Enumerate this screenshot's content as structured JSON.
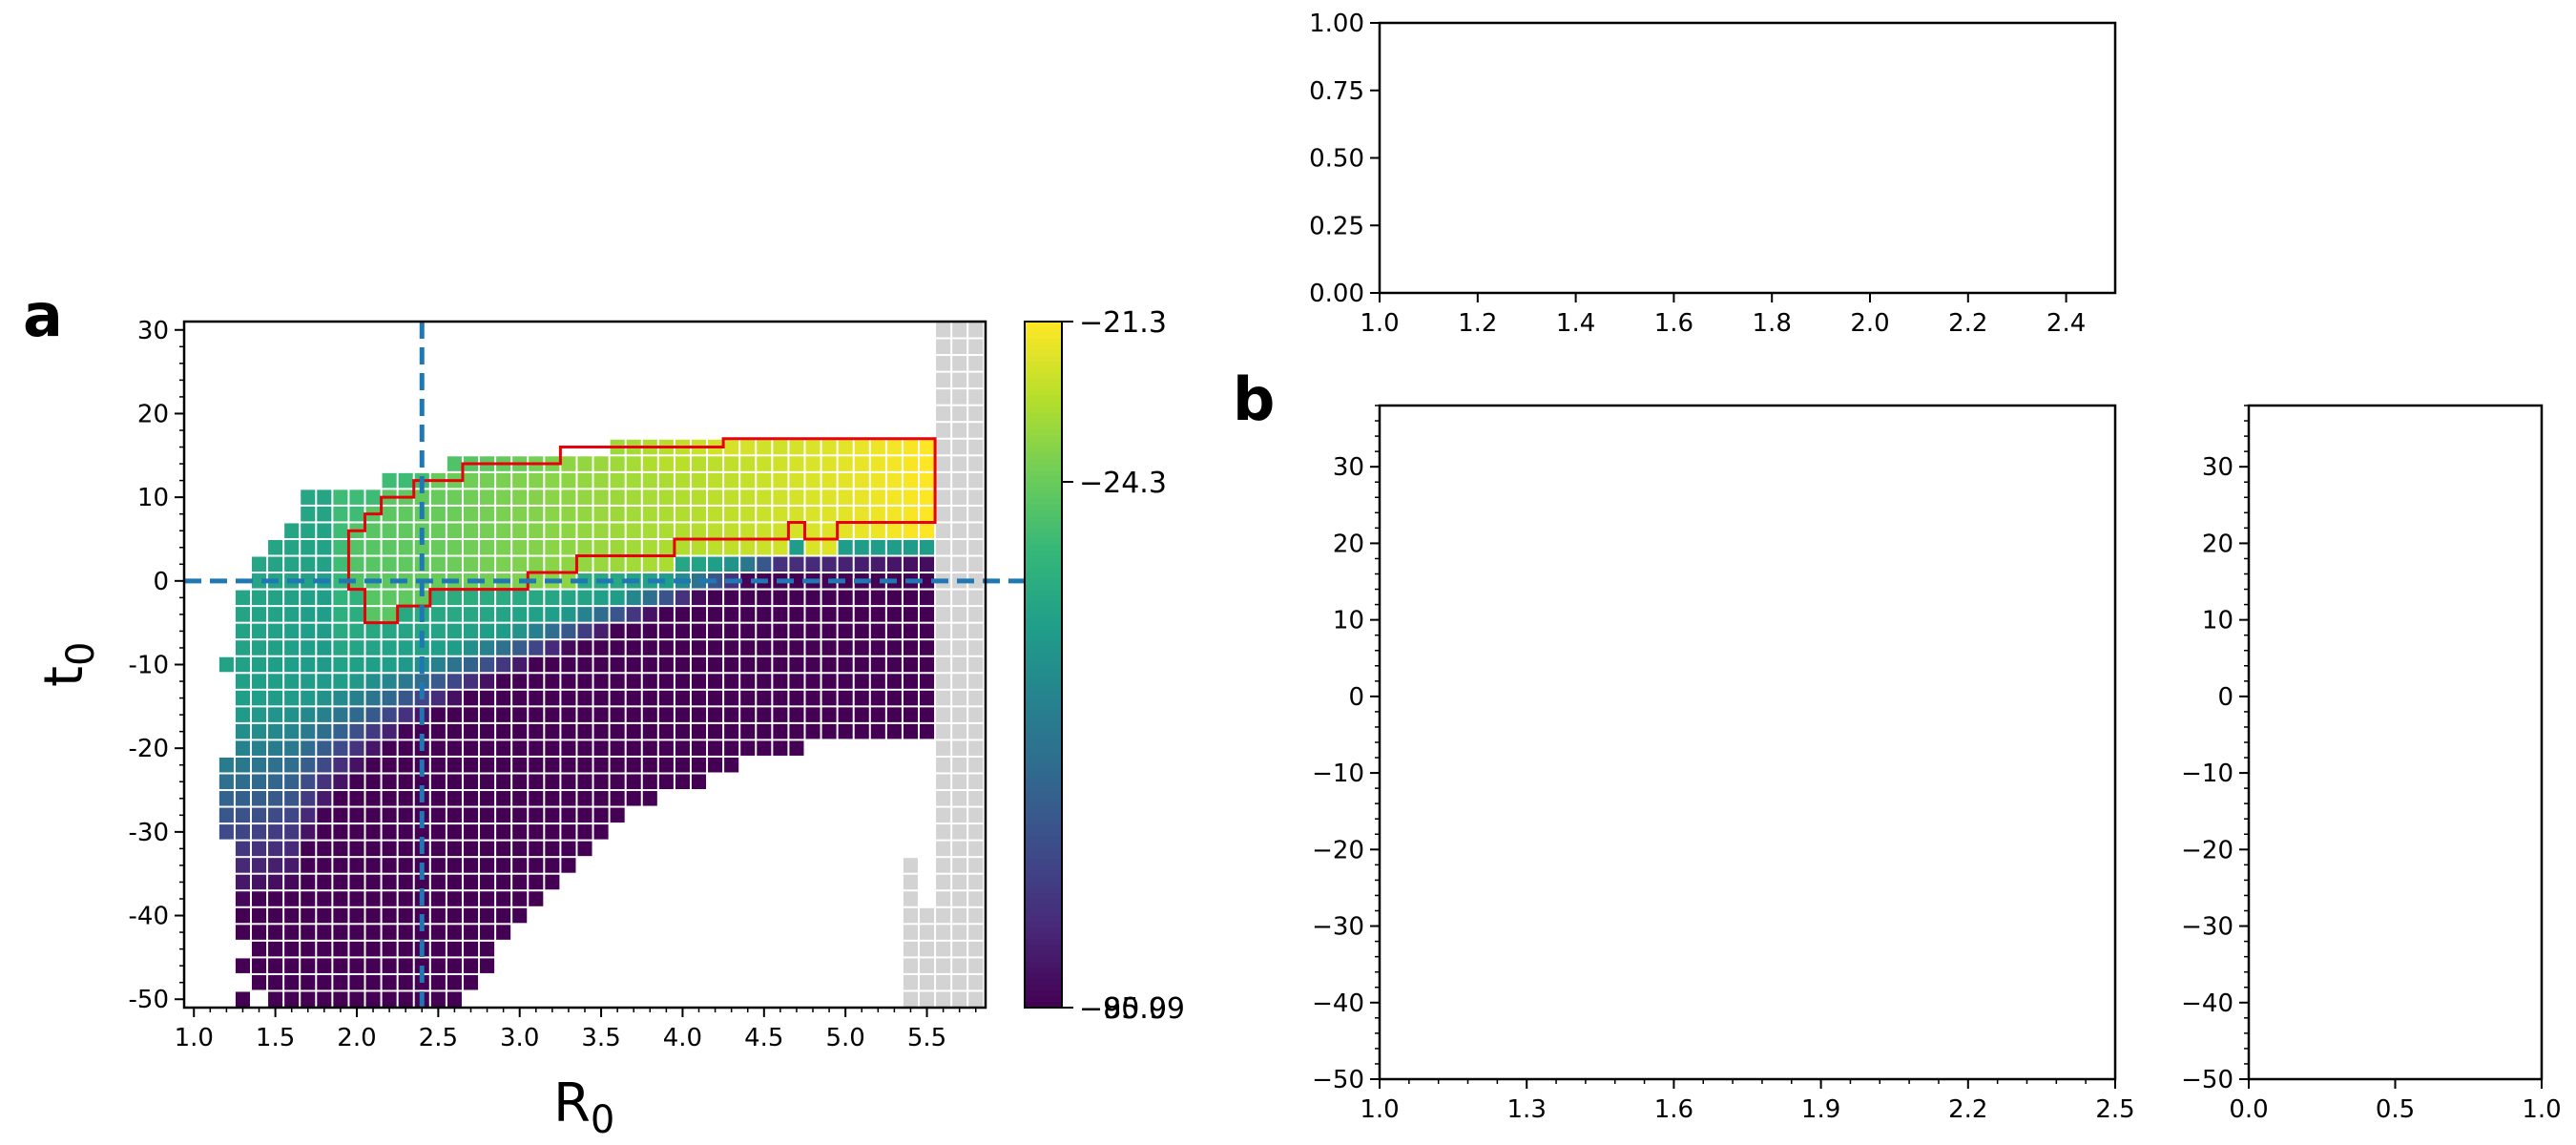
{
  "chart_data": [
    {
      "panel": "a",
      "type": "heatmap",
      "xlabel_main": "R",
      "xlabel_sub": "0",
      "ylabel_main": "t",
      "ylabel_sub": "0",
      "x_ticks": [
        "1.0",
        "1.5",
        "2.0",
        "2.5",
        "3.0",
        "3.5",
        "4.0",
        "4.5",
        "5.0",
        "5.5"
      ],
      "y_ticks": [
        "30",
        "20",
        "10",
        "0",
        "-10",
        "-20",
        "-30",
        "-40",
        "-50"
      ],
      "xlim": [
        0.94,
        5.86
      ],
      "ylim": [
        -51,
        31
      ],
      "grid_step": {
        "r0": 0.1,
        "t0": 2
      },
      "colormap": "viridis",
      "colorbar_ticks": [
        "−21.3",
        "−24.3",
        "−80.09",
        "−95.9"
      ],
      "colorbar_range": [
        -95.9,
        -21.3
      ],
      "reference_lines": {
        "R0": 2.4,
        "t0": 0,
        "color": "#1f77b4",
        "style": "dashed"
      },
      "highlight_region_color": "#e8000b",
      "unavailable_color": "#d3d3d3",
      "region": {
        "description": "cells present per R0 column (t0 ranges)",
        "columns": [
          {
            "r0": 1.2,
            "t0_ranges": [
              [
                -10,
                -10
              ],
              [
                -30,
                -22
              ]
            ]
          },
          {
            "r0": 1.3,
            "t0_ranges": [
              [
                -50,
                -50
              ],
              [
                -46,
                -46
              ],
              [
                -42,
                -2
              ]
            ]
          },
          {
            "r0": 1.4,
            "t0_ranges": [
              [
                -48,
                -46
              ],
              [
                -44,
                2
              ]
            ]
          },
          {
            "r0": 1.5,
            "t0_ranges": [
              [
                -50,
                -44
              ],
              [
                -42,
                4
              ]
            ]
          },
          {
            "r0": 1.6,
            "t0_ranges": [
              [
                -50,
                6
              ]
            ]
          },
          {
            "r0": 1.7,
            "t0_ranges": [
              [
                -50,
                10
              ]
            ]
          },
          {
            "r0": 1.8,
            "t0_ranges": [
              [
                -50,
                10
              ]
            ]
          },
          {
            "r0": 1.9,
            "t0_ranges": [
              [
                -50,
                10
              ]
            ]
          },
          {
            "r0": 2.0,
            "t0_ranges": [
              [
                -50,
                10
              ]
            ]
          },
          {
            "r0": 2.1,
            "t0_ranges": [
              [
                -50,
                10
              ]
            ]
          },
          {
            "r0": 2.2,
            "t0_ranges": [
              [
                -50,
                12
              ]
            ]
          },
          {
            "r0": 2.3,
            "t0_ranges": [
              [
                -50,
                12
              ]
            ]
          },
          {
            "r0": 2.4,
            "t0_ranges": [
              [
                -50,
                12
              ]
            ]
          },
          {
            "r0": 2.5,
            "t0_ranges": [
              [
                -50,
                12
              ]
            ]
          },
          {
            "r0": 2.6,
            "t0_ranges": [
              [
                -50,
                14
              ]
            ]
          },
          {
            "r0": 2.7,
            "t0_ranges": [
              [
                -48,
                14
              ]
            ]
          },
          {
            "r0": 2.8,
            "t0_ranges": [
              [
                -46,
                14
              ]
            ]
          },
          {
            "r0": 2.9,
            "t0_ranges": [
              [
                -42,
                14
              ]
            ]
          },
          {
            "r0": 3.0,
            "t0_ranges": [
              [
                -40,
                14
              ]
            ]
          },
          {
            "r0": 3.1,
            "t0_ranges": [
              [
                -38,
                14
              ]
            ]
          },
          {
            "r0": 3.2,
            "t0_ranges": [
              [
                -36,
                14
              ]
            ]
          },
          {
            "r0": 3.3,
            "t0_ranges": [
              [
                -34,
                14
              ]
            ]
          },
          {
            "r0": 3.4,
            "t0_ranges": [
              [
                -32,
                14
              ]
            ]
          },
          {
            "r0": 3.5,
            "t0_ranges": [
              [
                -30,
                14
              ]
            ]
          },
          {
            "r0": 3.6,
            "t0_ranges": [
              [
                -28,
                16
              ]
            ]
          },
          {
            "r0": 3.7,
            "t0_ranges": [
              [
                -26,
                16
              ]
            ]
          },
          {
            "r0": 3.8,
            "t0_ranges": [
              [
                -26,
                16
              ]
            ]
          },
          {
            "r0": 3.9,
            "t0_ranges": [
              [
                -24,
                16
              ]
            ]
          },
          {
            "r0": 4.0,
            "t0_ranges": [
              [
                -24,
                16
              ]
            ]
          },
          {
            "r0": 4.1,
            "t0_ranges": [
              [
                -24,
                16
              ]
            ]
          },
          {
            "r0": 4.2,
            "t0_ranges": [
              [
                -22,
                16
              ]
            ]
          },
          {
            "r0": 4.3,
            "t0_ranges": [
              [
                -22,
                16
              ]
            ]
          },
          {
            "r0": 4.4,
            "t0_ranges": [
              [
                -20,
                16
              ]
            ]
          },
          {
            "r0": 4.5,
            "t0_ranges": [
              [
                -20,
                16
              ]
            ]
          },
          {
            "r0": 4.6,
            "t0_ranges": [
              [
                -20,
                16
              ]
            ]
          },
          {
            "r0": 4.7,
            "t0_ranges": [
              [
                -20,
                16
              ]
            ]
          },
          {
            "r0": 4.8,
            "t0_ranges": [
              [
                -18,
                16
              ]
            ]
          },
          {
            "r0": 4.9,
            "t0_ranges": [
              [
                -18,
                16
              ]
            ]
          },
          {
            "r0": 5.0,
            "t0_ranges": [
              [
                -18,
                16
              ]
            ]
          },
          {
            "r0": 5.1,
            "t0_ranges": [
              [
                -18,
                16
              ]
            ]
          },
          {
            "r0": 5.2,
            "t0_ranges": [
              [
                -18,
                16
              ]
            ]
          },
          {
            "r0": 5.3,
            "t0_ranges": [
              [
                -18,
                16
              ]
            ]
          },
          {
            "r0": 5.4,
            "t0_ranges": [
              [
                -18,
                16
              ]
            ]
          },
          {
            "r0": 5.5,
            "t0_ranges": [
              [
                -18,
                16
              ]
            ]
          }
        ],
        "gray_columns": [
          {
            "r0": 5.4,
            "t0_ranges": [
              [
                -50,
                -34
              ]
            ]
          },
          {
            "r0": 5.5,
            "t0_ranges": [
              [
                -50,
                -40
              ]
            ]
          },
          {
            "r0": 5.6,
            "t0_ranges": [
              [
                -50,
                30
              ]
            ]
          },
          {
            "r0": 5.7,
            "t0_ranges": [
              [
                -50,
                30
              ]
            ]
          },
          {
            "r0": 5.8,
            "t0_ranges": [
              [
                -50,
                30
              ]
            ]
          }
        ]
      }
    },
    {
      "panel": "b-top",
      "type": "line",
      "series": [],
      "x_ticks": [
        "1.0",
        "1.2",
        "1.4",
        "1.6",
        "1.8",
        "2.0",
        "2.2",
        "2.4"
      ],
      "y_ticks": [
        "1.00",
        "0.75",
        "0.50",
        "0.25",
        "0.00"
      ],
      "xlim": [
        1.0,
        2.5
      ],
      "ylim": [
        0.0,
        1.0
      ]
    },
    {
      "panel": "b-main",
      "type": "line",
      "series": [],
      "x_ticks": [
        "1.0",
        "1.3",
        "1.6",
        "1.9",
        "2.2",
        "2.5"
      ],
      "y_ticks": [
        "30",
        "20",
        "10",
        "0",
        "−10",
        "−20",
        "−30",
        "−40",
        "−50"
      ],
      "xlim": [
        1.0,
        2.5
      ],
      "ylim": [
        -50,
        38
      ]
    },
    {
      "panel": "b-right",
      "type": "line",
      "series": [],
      "x_ticks": [
        "0.0",
        "0.5",
        "1.0"
      ],
      "y_ticks": [
        "30",
        "20",
        "10",
        "0",
        "−10",
        "−20",
        "−30",
        "−40",
        "−50"
      ],
      "xlim": [
        0.0,
        1.0
      ],
      "ylim": [
        -50,
        38
      ]
    }
  ],
  "labels": {
    "panel_a": "a",
    "panel_b": "b"
  }
}
